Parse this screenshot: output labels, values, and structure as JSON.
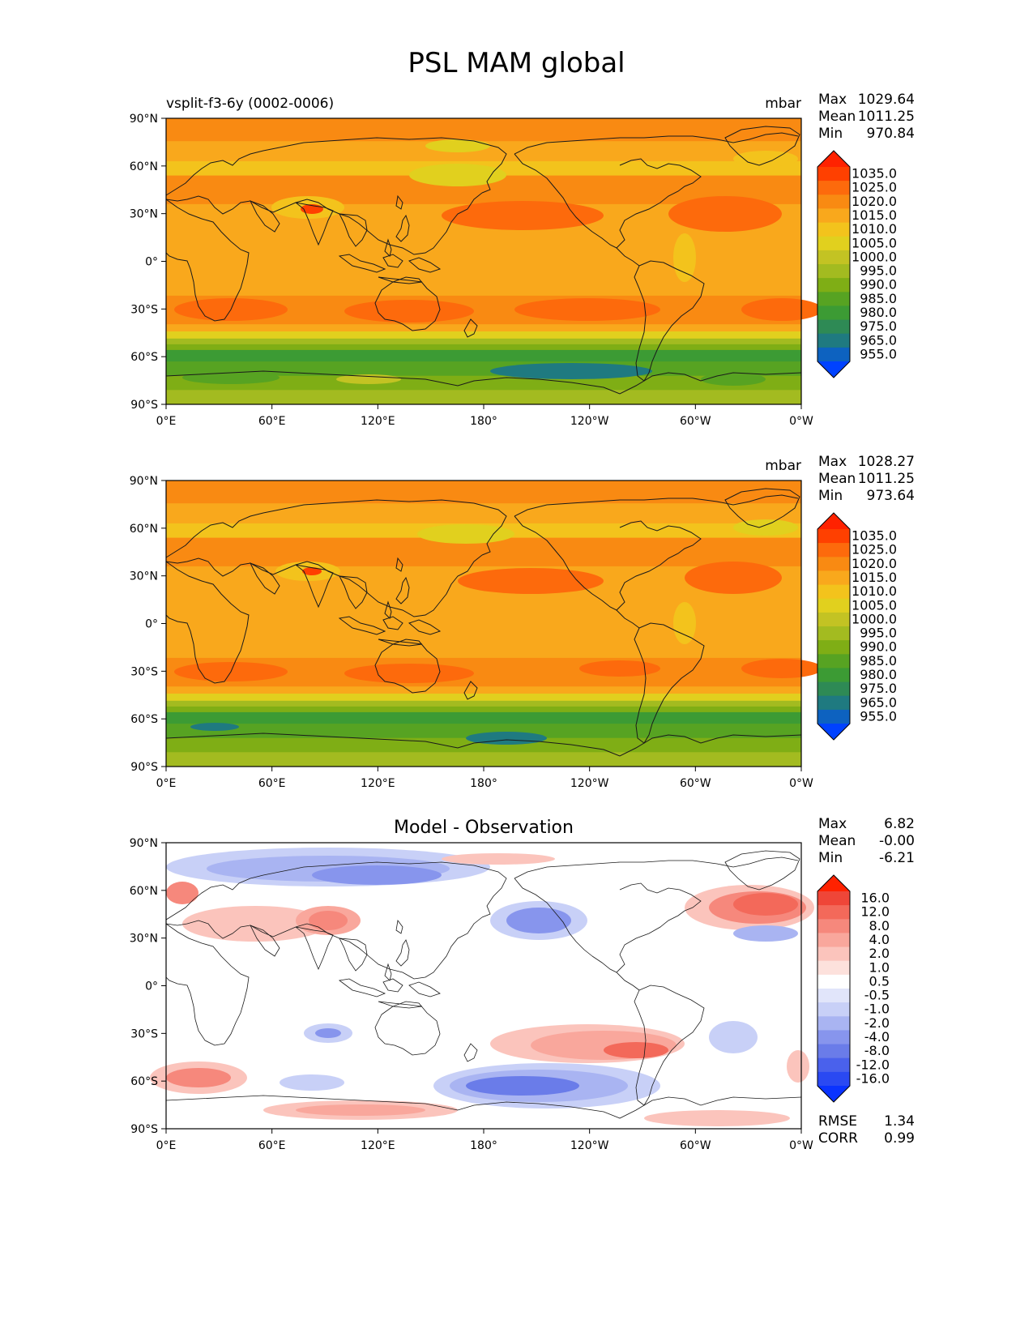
{
  "title": "PSL MAM global",
  "xticks": [
    "0°E",
    "60°E",
    "120°E",
    "180°",
    "120°W",
    "60°W",
    "0°W"
  ],
  "yticks": [
    "90°N",
    "60°N",
    "30°N",
    "0°",
    "30°S",
    "60°S",
    "90°S"
  ],
  "panels": [
    {
      "id": "model",
      "left_title": "vsplit-f3-6y (0002-0006)",
      "center_title": "",
      "units": "mbar",
      "stats": [
        {
          "label": "Max",
          "value": "1029.64"
        },
        {
          "label": "Mean",
          "value": "1011.25"
        },
        {
          "label": "Min",
          "value": "970.84"
        }
      ],
      "colorbar_labels": [
        "1035.0",
        "1025.0",
        "1020.0",
        "1015.0",
        "1010.0",
        "1005.0",
        "1000.0",
        "995.0",
        "990.0",
        "985.0",
        "980.0",
        "975.0",
        "965.0",
        "955.0"
      ]
    },
    {
      "id": "observation",
      "left_title": "",
      "center_title": "",
      "units": "mbar",
      "stats": [
        {
          "label": "Max",
          "value": "1028.27"
        },
        {
          "label": "Mean",
          "value": "1011.25"
        },
        {
          "label": "Min",
          "value": "973.64"
        }
      ],
      "colorbar_labels": [
        "1035.0",
        "1025.0",
        "1020.0",
        "1015.0",
        "1010.0",
        "1005.0",
        "1000.0",
        "995.0",
        "990.0",
        "985.0",
        "980.0",
        "975.0",
        "965.0",
        "955.0"
      ]
    },
    {
      "id": "difference",
      "left_title": "",
      "center_title": "Model - Observation",
      "units": "",
      "stats": [
        {
          "label": "Max",
          "value": "6.82"
        },
        {
          "label": "Mean",
          "value": "-0.00"
        },
        {
          "label": "Min",
          "value": "-6.21"
        }
      ],
      "colorbar_labels": [
        "16.0",
        "12.0",
        "8.0",
        "4.0",
        "2.0",
        "1.0",
        "0.5",
        "-0.5",
        "-1.0",
        "-2.0",
        "-4.0",
        "-8.0",
        "-12.0",
        "-16.0"
      ],
      "footer_stats": [
        {
          "label": "RMSE",
          "value": "1.34"
        },
        {
          "label": "CORR",
          "value": "0.99"
        }
      ]
    }
  ],
  "colors": {
    "pressure_scale": [
      "#ff2200",
      "#ff4000",
      "#fd6a0c",
      "#f98a12",
      "#f9a81c",
      "#f3c31c",
      "#e1d01e",
      "#c3c323",
      "#a3bb20",
      "#7fae15",
      "#57a322",
      "#3c9b34",
      "#2e8a55",
      "#1f7a80",
      "#0d62c0",
      "#0042ff"
    ],
    "difference_scale": [
      "#ff2200",
      "#ef4638",
      "#f3695a",
      "#f6887c",
      "#f9a79c",
      "#fbc4bc",
      "#fde1dc",
      "#ffffff",
      "#e1e5fa",
      "#c8d0f7",
      "#a9b4f2",
      "#8795ed",
      "#6a7ce9",
      "#4a61ec",
      "#2a49f2",
      "#0a33ff"
    ],
    "land_outline": "#1a1a1a"
  }
}
